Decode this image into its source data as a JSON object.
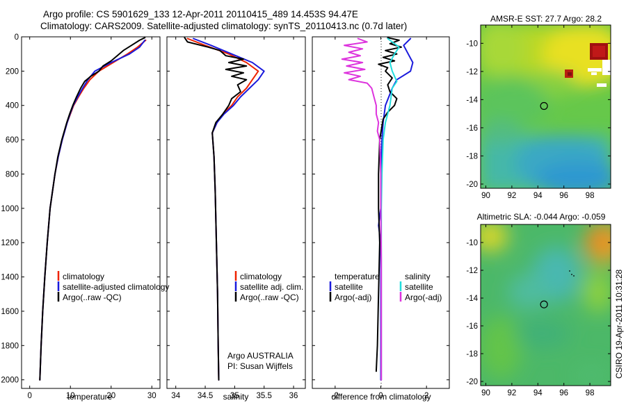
{
  "header": {
    "line1": "Argo profile: CS 5901629_133 12-Apr-2011 20110415_489 14.453S 94.47E",
    "line2": "Climatology: CARS2009. Satellite-adjusted climatology: synTS_20110413.nc (0.7d later)"
  },
  "colors": {
    "climatology": "#ee2200",
    "satellite": "#1a1adc",
    "argo": "#000000",
    "argo_adj": "#dd33dd",
    "sat_salt": "#22dddd"
  },
  "chart_data": [
    {
      "type": "line",
      "xlabel": "temperature",
      "ylim": [
        2050,
        0
      ],
      "xlim": [
        -2,
        32
      ],
      "xticks": [
        "0",
        "10",
        "20",
        "30"
      ],
      "yticks": [
        "0",
        "200",
        "400",
        "600",
        "800",
        "1000",
        "1200",
        "1400",
        "1600",
        "1800",
        "2000"
      ],
      "legend": [
        "climatology",
        "satellite-adjusted climatology",
        "Argo(..raw -QC)"
      ],
      "series": [
        {
          "name": "climatology",
          "depth": [
            20,
            60,
            100,
            150,
            200,
            250,
            300,
            350,
            400,
            450,
            500,
            600,
            700,
            800,
            1000,
            1200,
            1400,
            1600,
            1800,
            2000
          ],
          "values": [
            28.5,
            26.5,
            24,
            20.5,
            17,
            14.8,
            13.3,
            12,
            10.8,
            10,
            9.2,
            8,
            7,
            6.2,
            5,
            4.3,
            3.7,
            3.2,
            2.8,
            2.5
          ]
        },
        {
          "name": "satellite-adjusted climatology",
          "depth": [
            20,
            60,
            100,
            150,
            200,
            250,
            300,
            350,
            400,
            450,
            500,
            600,
            700,
            800,
            1000,
            1200,
            1400,
            1600,
            1800,
            2000
          ],
          "values": [
            28.3,
            27,
            24.5,
            20,
            16,
            14.3,
            13,
            11.8,
            10.7,
            9.9,
            9.2,
            8,
            7,
            6.2,
            5,
            4.3,
            3.7,
            3.2,
            2.8,
            2.5
          ]
        },
        {
          "name": "Argo(..raw -QC)",
          "depth": [
            5,
            20,
            50,
            80,
            110,
            140,
            170,
            200,
            230,
            260,
            300,
            350,
            400,
            450,
            500,
            600,
            700,
            800,
            1000,
            1200,
            1400,
            1600,
            1800,
            2000
          ],
          "values": [
            28.3,
            27,
            25,
            23,
            21.5,
            20,
            18,
            17,
            15,
            13.5,
            12.5,
            11.5,
            10.6,
            9.8,
            9.1,
            7.9,
            6.9,
            6.2,
            5,
            4.3,
            3.7,
            3.2,
            2.8,
            2.5
          ]
        }
      ]
    },
    {
      "type": "line",
      "xlabel": "salinity",
      "ylim": [
        2050,
        0
      ],
      "xlim": [
        33.85,
        36.2
      ],
      "xticks": [
        "34",
        "34.5",
        "35",
        "35.5",
        "36"
      ],
      "legend": [
        "climatology",
        "satellite adj. clim.",
        "Argo(..raw -QC)"
      ],
      "annotations": [
        "Argo AUSTRALIA",
        "PI: Susan Wijffels"
      ],
      "series": [
        {
          "name": "climatology",
          "depth": [
            10,
            50,
            100,
            150,
            200,
            250,
            300,
            350,
            400,
            450,
            500,
            560,
            700,
            900,
            1200,
            1500,
            1800,
            2000
          ],
          "values": [
            34.2,
            34.5,
            34.9,
            35.2,
            35.4,
            35.3,
            35.2,
            35.05,
            34.95,
            34.8,
            34.7,
            34.62,
            34.65,
            34.67,
            34.69,
            34.71,
            34.72,
            34.73
          ]
        },
        {
          "name": "satellite adj. clim.",
          "depth": [
            10,
            50,
            100,
            150,
            200,
            250,
            300,
            350,
            400,
            450,
            500,
            560,
            700,
            900,
            1200,
            1500,
            1800,
            2000
          ],
          "values": [
            34.3,
            34.6,
            34.95,
            35.3,
            35.5,
            35.4,
            35.25,
            35.1,
            34.98,
            34.82,
            34.7,
            34.62,
            34.65,
            34.67,
            34.69,
            34.71,
            34.72,
            34.73
          ]
        },
        {
          "name": "Argo(..raw -QC)",
          "depth": [
            5,
            30,
            60,
            80,
            110,
            130,
            150,
            170,
            190,
            210,
            230,
            250,
            280,
            320,
            360,
            400,
            450,
            500,
            560,
            700,
            900,
            1200,
            1500,
            1800,
            2000
          ],
          "values": [
            34.15,
            34.2,
            34.55,
            34.75,
            34.85,
            35.15,
            34.9,
            35.2,
            34.85,
            35.15,
            34.95,
            35.2,
            35.05,
            35.1,
            34.95,
            34.9,
            34.8,
            34.68,
            34.62,
            34.65,
            34.67,
            34.69,
            34.71,
            34.72,
            34.73
          ]
        }
      ]
    },
    {
      "type": "line",
      "xlabel": "difference from climatology",
      "ylim": [
        2050,
        0
      ],
      "xlim": [
        -3,
        3
      ],
      "xticks": [
        "-2",
        "0",
        "2"
      ],
      "legend_titles": [
        "temperature",
        "salinity"
      ],
      "legend": [
        "satellite",
        "Argo(-adj)",
        "satellite",
        "Argo(-adj)"
      ],
      "series": [
        {
          "name": "temperature satellite",
          "depth": [
            10,
            50,
            100,
            150,
            200,
            250,
            300,
            400,
            500,
            600,
            800,
            1000,
            1100,
            1200,
            1500,
            2000
          ],
          "values": [
            1.3,
            1.0,
            1.2,
            1.4,
            1.3,
            0.7,
            0.5,
            0.2,
            0.1,
            0.05,
            0,
            0,
            -0.1,
            0,
            0,
            0
          ]
        },
        {
          "name": "temperature Argo(-adj)",
          "depth": [
            5,
            20,
            40,
            60,
            80,
            100,
            120,
            140,
            160,
            180,
            200,
            240,
            280,
            320,
            360,
            400,
            440,
            480,
            600,
            800,
            1000,
            1200,
            1500,
            1800,
            1950
          ],
          "values": [
            0.3,
            0.8,
            0.4,
            0.9,
            0.2,
            0.7,
            0.1,
            0.6,
            -0.1,
            0.3,
            0.2,
            0.5,
            0.3,
            0.4,
            0.7,
            0.6,
            0.3,
            0.1,
            -0.05,
            -0.1,
            -0.1,
            -0.05,
            -0.1,
            -0.15,
            -0.2
          ]
        },
        {
          "name": "salinity satellite",
          "depth": [
            10,
            60,
            100,
            150,
            200,
            260,
            300,
            400,
            500,
            600,
            800,
            1000,
            1300,
            1600,
            2000
          ],
          "values": [
            0.3,
            0.8,
            0.6,
            0.4,
            0.5,
            0.7,
            0.5,
            0.4,
            0.2,
            0.1,
            0.05,
            0.02,
            0.02,
            0.02,
            0.02
          ]
        },
        {
          "name": "salinity Argo(-adj)",
          "depth": [
            10,
            30,
            50,
            70,
            90,
            110,
            130,
            150,
            170,
            190,
            210,
            230,
            250,
            270,
            300,
            350,
            400,
            450,
            500,
            550,
            600,
            800,
            1000,
            1300,
            1600,
            2000
          ],
          "values": [
            -1.0,
            -0.6,
            -1.6,
            -0.8,
            -1.4,
            -0.9,
            -1.7,
            -0.8,
            -1.5,
            -0.7,
            -1.6,
            -0.9,
            -1.4,
            -0.6,
            -0.4,
            -0.3,
            -0.2,
            -0.2,
            -0.1,
            -0.15,
            -0.05,
            0,
            0,
            0.02,
            0.02,
            0.02
          ]
        }
      ]
    },
    {
      "type": "heatmap",
      "title": "AMSR-E SST: 27.7 Argo: 28.2",
      "xlim": [
        89.6,
        99.6
      ],
      "ylim": [
        -20.3,
        -8.7
      ],
      "xticks": [
        "90",
        "92",
        "94",
        "96",
        "98"
      ],
      "yticks": [
        "-10",
        "-12",
        "-14",
        "-16",
        "-18",
        "-20"
      ],
      "marker": {
        "lon": 94.47,
        "lat": -14.453
      }
    },
    {
      "type": "heatmap",
      "title": "Altimetric SLA: -0.044 Argo: -0.059",
      "xlim": [
        89.6,
        99.6
      ],
      "ylim": [
        -20.3,
        -8.7
      ],
      "xticks": [
        "90",
        "92",
        "94",
        "96",
        "98"
      ],
      "yticks": [
        "-10",
        "-12",
        "-14",
        "-16",
        "-18",
        "-20"
      ],
      "marker": {
        "lon": 94.47,
        "lat": -14.453
      }
    }
  ],
  "footer": {
    "stamp": "CSIRO 19-Apr-2011 10:31:28"
  }
}
